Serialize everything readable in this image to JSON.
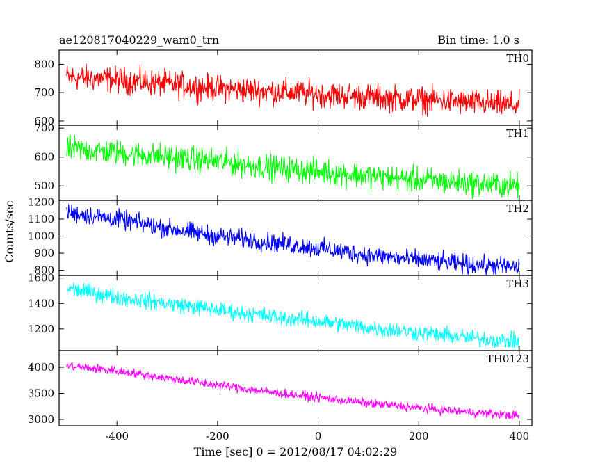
{
  "chart_data": {
    "type": "line",
    "title": "ae120817040229_wam0_trn",
    "bin_time_label": "Bin time: 1.0 s",
    "xlabel": "Time [sec] 0 = 2012/08/17 04:02:29",
    "ylabel": "Counts/sec",
    "xlim": [
      -515,
      425
    ],
    "x_ticks": [
      -400,
      -200,
      0,
      200,
      400
    ],
    "x_range": [
      -500,
      400
    ],
    "panels": [
      {
        "name": "TH0",
        "color": "#ff0000",
        "ylim": [
          585,
          850
        ],
        "y_ticks": [
          600,
          700,
          800
        ],
        "trend": [
          [
            -500,
            755
          ],
          [
            -400,
            745
          ],
          [
            -300,
            730
          ],
          [
            -200,
            715
          ],
          [
            -100,
            705
          ],
          [
            0,
            695
          ],
          [
            100,
            685
          ],
          [
            200,
            675
          ],
          [
            300,
            665
          ],
          [
            400,
            655
          ]
        ],
        "noise": 40
      },
      {
        "name": "TH1",
        "color": "#00ff00",
        "ylim": [
          450,
          710
        ],
        "y_ticks": [
          500,
          600,
          700
        ],
        "trend": [
          [
            -500,
            630
          ],
          [
            -400,
            615
          ],
          [
            -300,
            600
          ],
          [
            -200,
            585
          ],
          [
            -100,
            565
          ],
          [
            0,
            550
          ],
          [
            100,
            535
          ],
          [
            200,
            520
          ],
          [
            300,
            510
          ],
          [
            400,
            500
          ]
        ],
        "noise": 38
      },
      {
        "name": "TH2",
        "color": "#0000ff",
        "ylim": [
          770,
          1210
        ],
        "y_ticks": [
          800,
          900,
          1000,
          1100,
          1200
        ],
        "trend": [
          [
            -500,
            1140
          ],
          [
            -400,
            1100
          ],
          [
            -300,
            1045
          ],
          [
            -200,
            1000
          ],
          [
            -100,
            965
          ],
          [
            0,
            930
          ],
          [
            100,
            890
          ],
          [
            200,
            860
          ],
          [
            300,
            835
          ],
          [
            400,
            815
          ]
        ],
        "noise": 48
      },
      {
        "name": "TH3",
        "color": "#00ffff",
        "ylim": [
          1030,
          1620
        ],
        "y_ticks": [
          1200,
          1400,
          1600
        ],
        "trend": [
          [
            -500,
            1520
          ],
          [
            -400,
            1450
          ],
          [
            -300,
            1400
          ],
          [
            -200,
            1350
          ],
          [
            -100,
            1300
          ],
          [
            0,
            1260
          ],
          [
            100,
            1210
          ],
          [
            200,
            1170
          ],
          [
            300,
            1130
          ],
          [
            400,
            1100
          ]
        ],
        "noise": 55
      },
      {
        "name": "TH0123",
        "color": "#ff00ff",
        "ylim": [
          2880,
          4320
        ],
        "y_ticks": [
          3000,
          3500,
          4000
        ],
        "trend": [
          [
            -500,
            4030
          ],
          [
            -400,
            3930
          ],
          [
            -300,
            3790
          ],
          [
            -200,
            3660
          ],
          [
            -100,
            3530
          ],
          [
            0,
            3420
          ],
          [
            100,
            3310
          ],
          [
            200,
            3220
          ],
          [
            300,
            3140
          ],
          [
            400,
            3070
          ]
        ],
        "noise": 75
      }
    ]
  }
}
